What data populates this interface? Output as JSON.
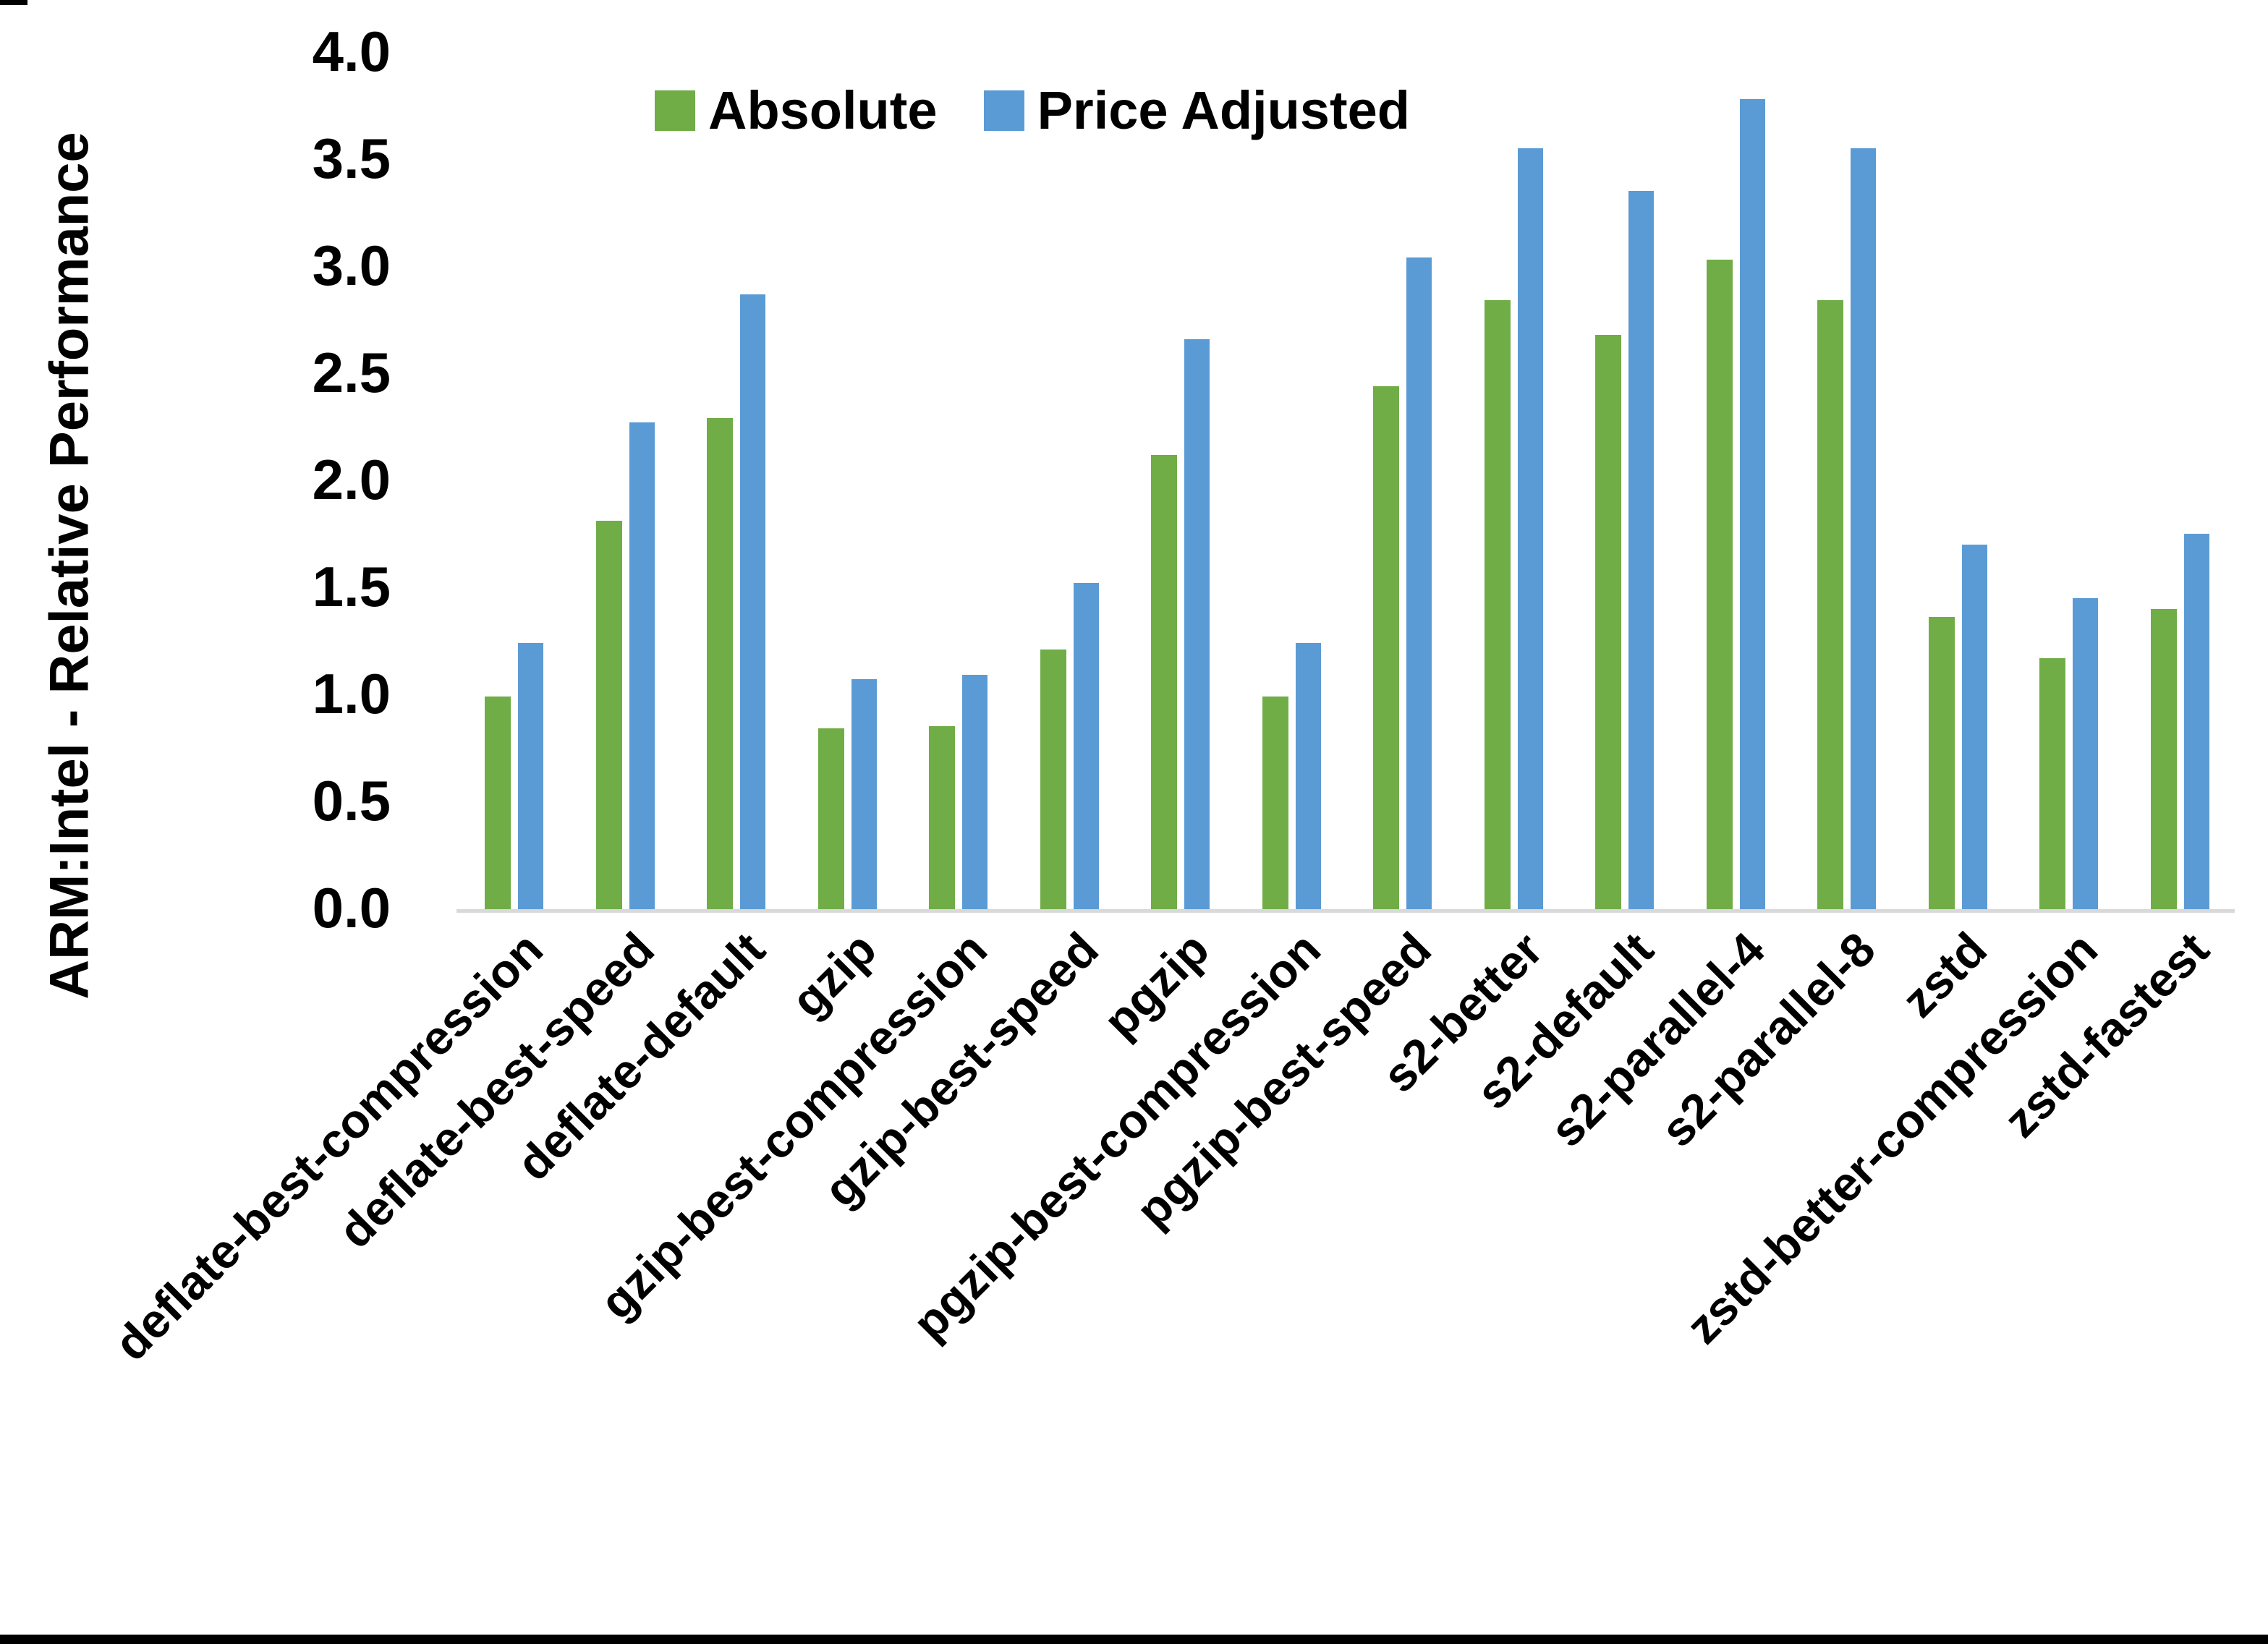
{
  "chart_data": {
    "type": "bar",
    "title": "",
    "xlabel": "",
    "ylabel": "ARM:Intel - Relative Performance",
    "ylim": [
      0.0,
      4.0
    ],
    "ytick_step": 0.5,
    "yticks": [
      "0.0",
      "0.5",
      "1.0",
      "1.5",
      "2.0",
      "2.5",
      "3.0",
      "3.5",
      "4.0"
    ],
    "grid": false,
    "legend_position": "top-center",
    "axis_line_color": "#d9d9d9",
    "text_color": "#000000",
    "background_color": "#ffffff",
    "categories": [
      "deflate-best-compression",
      "deflate-best-speed",
      "deflate-default",
      "gzip",
      "gzip-best-compression",
      "gzip-best-speed",
      "pgzip",
      "pgzip-best-compression",
      "pgzip-best-speed",
      "s2-better",
      "s2-default",
      "s2-parallel-4",
      "s2-parallel-8",
      "zstd",
      "zstd-better-compression",
      "zstd-fastest"
    ],
    "series": [
      {
        "name": "Absolute",
        "color": "#70AD47",
        "values": [
          1.0,
          1.82,
          2.3,
          0.85,
          0.86,
          1.22,
          2.13,
          1.0,
          2.45,
          2.85,
          2.69,
          3.04,
          2.85,
          1.37,
          1.18,
          1.41
        ]
      },
      {
        "name": "Price Adjusted",
        "color": "#5B9BD5",
        "values": [
          1.25,
          2.28,
          2.88,
          1.08,
          1.1,
          1.53,
          2.67,
          1.25,
          3.05,
          3.56,
          3.36,
          3.79,
          3.56,
          1.71,
          1.46,
          1.76
        ]
      }
    ]
  }
}
